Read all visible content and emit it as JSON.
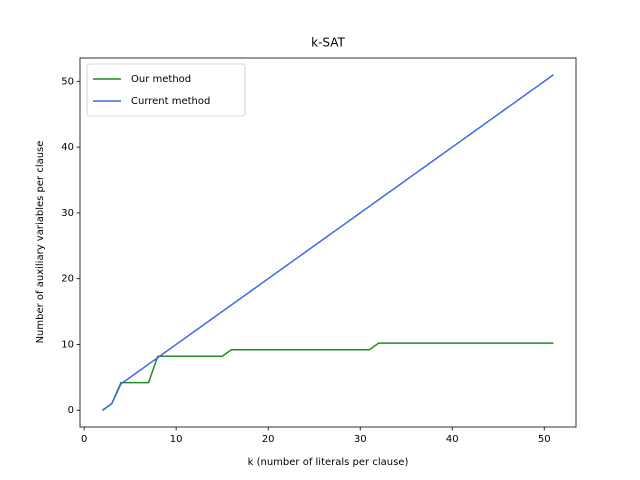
{
  "chart_data": {
    "type": "line",
    "title": "k-SAT",
    "x_label": "k (number of literals per clause)",
    "y_label": "Number of auxiliary variables per clause",
    "x": [
      2,
      3,
      4,
      5,
      6,
      7,
      8,
      9,
      10,
      11,
      12,
      13,
      14,
      15,
      16,
      17,
      18,
      19,
      20,
      21,
      22,
      23,
      24,
      25,
      26,
      27,
      28,
      29,
      30,
      31,
      32,
      33,
      34,
      35,
      36,
      37,
      38,
      39,
      40,
      41,
      42,
      43,
      44,
      45,
      46,
      47,
      48,
      49,
      50,
      51
    ],
    "series": [
      {
        "name": "Our method",
        "color": "#228b22",
        "values": [
          0,
          1,
          4.2,
          4.2,
          4.2,
          4.2,
          8.2,
          8.2,
          8.2,
          8.2,
          8.2,
          8.2,
          8.2,
          8.2,
          9.2,
          9.2,
          9.2,
          9.2,
          9.2,
          9.2,
          9.2,
          9.2,
          9.2,
          9.2,
          9.2,
          9.2,
          9.2,
          9.2,
          9.2,
          9.2,
          10.2,
          10.2,
          10.2,
          10.2,
          10.2,
          10.2,
          10.2,
          10.2,
          10.2,
          10.2,
          10.2,
          10.2,
          10.2,
          10.2,
          10.2,
          10.2,
          10.2,
          10.2,
          10.2,
          10.2
        ]
      },
      {
        "name": "Current method",
        "color": "#4169e1",
        "values": [
          0,
          1,
          4,
          5,
          6,
          7,
          8,
          9,
          10,
          11,
          12,
          13,
          14,
          15,
          16,
          17,
          18,
          19,
          20,
          21,
          22,
          23,
          24,
          25,
          26,
          27,
          28,
          29,
          30,
          31,
          32,
          33,
          34,
          35,
          36,
          37,
          38,
          39,
          40,
          41,
          42,
          43,
          44,
          45,
          46,
          47,
          48,
          49,
          50,
          51
        ]
      }
    ],
    "xlim": [
      -0.45,
      53.45
    ],
    "xticks": [
      0,
      10,
      20,
      30,
      40,
      50
    ],
    "ylim": [
      -2.55,
      53.55
    ],
    "yticks": [
      0,
      10,
      20,
      30,
      40,
      50
    ],
    "legend": "upper left"
  }
}
